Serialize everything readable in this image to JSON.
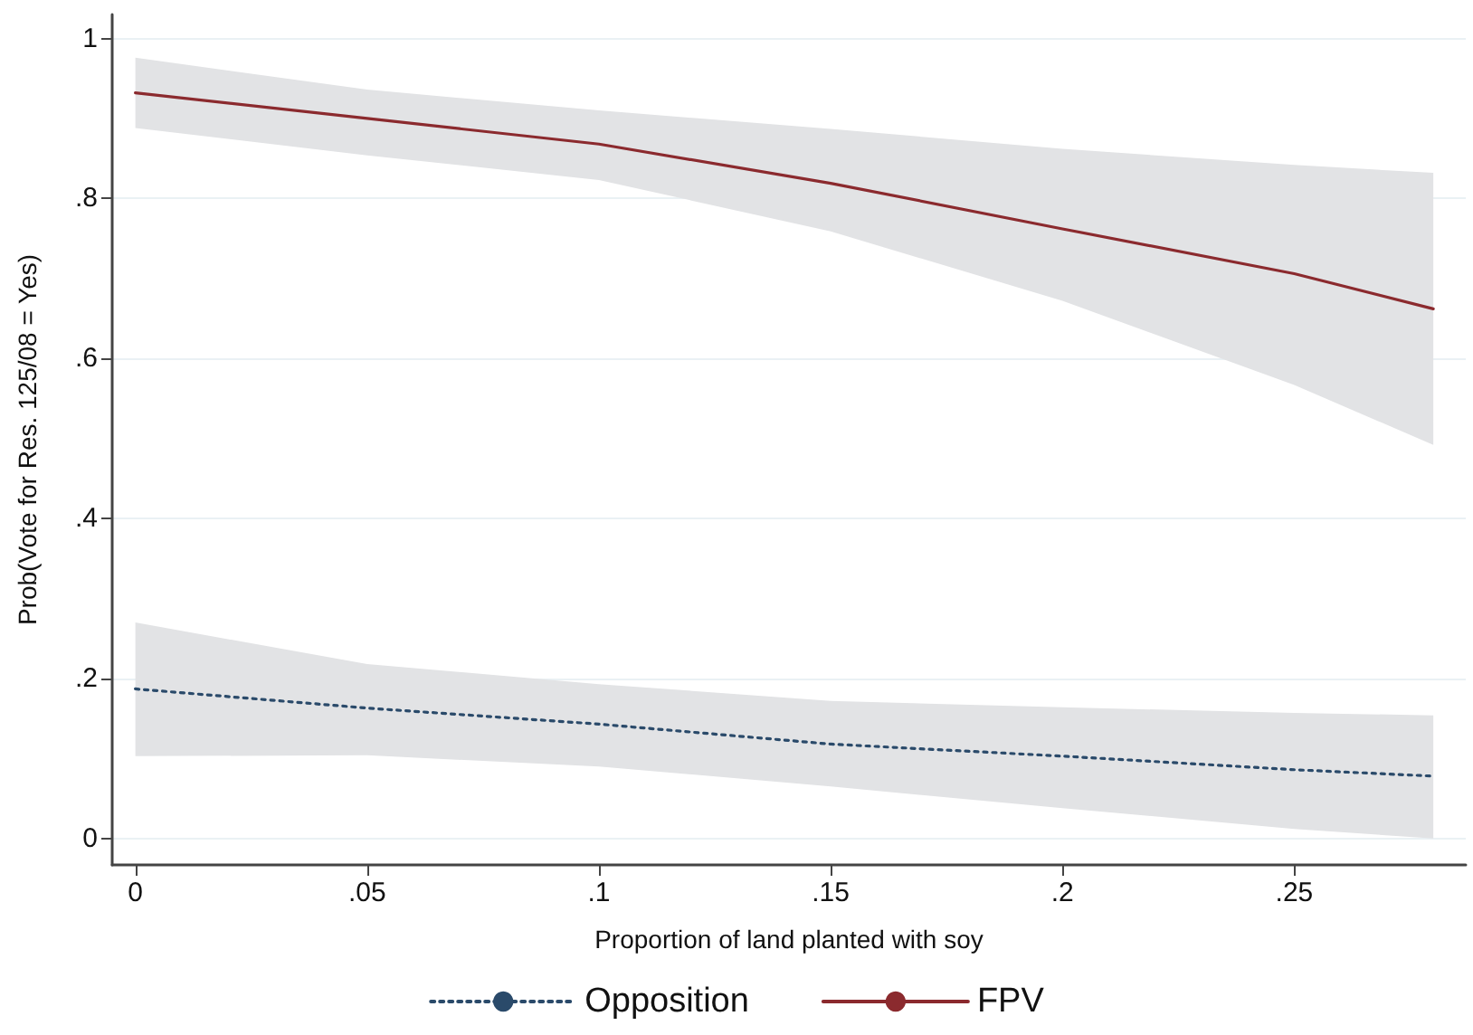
{
  "chart_data": {
    "type": "line",
    "xlabel": "Proportion of land planted with soy",
    "ylabel": "Prob(Vote for Res. 125/08 = Yes)",
    "x": [
      0,
      0.05,
      0.1,
      0.15,
      0.2,
      0.25,
      0.28
    ],
    "series": [
      {
        "name": "Opposition",
        "color": "#2a4a6a",
        "line_style": "dotted",
        "values": [
          0.187,
          0.163,
          0.143,
          0.118,
          0.103,
          0.086,
          0.078
        ],
        "lower": [
          0.103,
          0.104,
          0.09,
          0.065,
          0.038,
          0.012,
          0.0
        ],
        "upper": [
          0.27,
          0.218,
          0.193,
          0.172,
          0.164,
          0.157,
          0.154
        ]
      },
      {
        "name": "FPV",
        "color": "#8b2a2e",
        "line_style": "solid",
        "values": [
          0.932,
          0.9,
          0.868,
          0.819,
          0.762,
          0.706,
          0.662
        ],
        "lower": [
          0.888,
          0.854,
          0.823,
          0.759,
          0.672,
          0.567,
          0.492
        ],
        "upper": [
          0.976,
          0.936,
          0.91,
          0.887,
          0.862,
          0.842,
          0.832
        ]
      }
    ],
    "xlim": [
      -0.005,
      0.287
    ],
    "xticks": [
      0,
      {
        "value": 0.05,
        "label": ".05"
      },
      {
        "value": 0.1,
        "label": ".1"
      },
      {
        "value": 0.15,
        "label": ".15"
      },
      {
        "value": 0.2,
        "label": ".2"
      },
      {
        "value": 0.25,
        "label": ".25"
      }
    ],
    "ylim": [
      -0.033,
      1.03
    ],
    "yticks": [
      0,
      {
        "value": 0.2,
        "label": ".2"
      },
      {
        "value": 0.4,
        "label": ".4"
      },
      {
        "value": 0.6,
        "label": ".6"
      },
      {
        "value": 0.8,
        "label": ".8"
      },
      1
    ],
    "grid": "y",
    "legend": "bottom",
    "marker": "none"
  }
}
